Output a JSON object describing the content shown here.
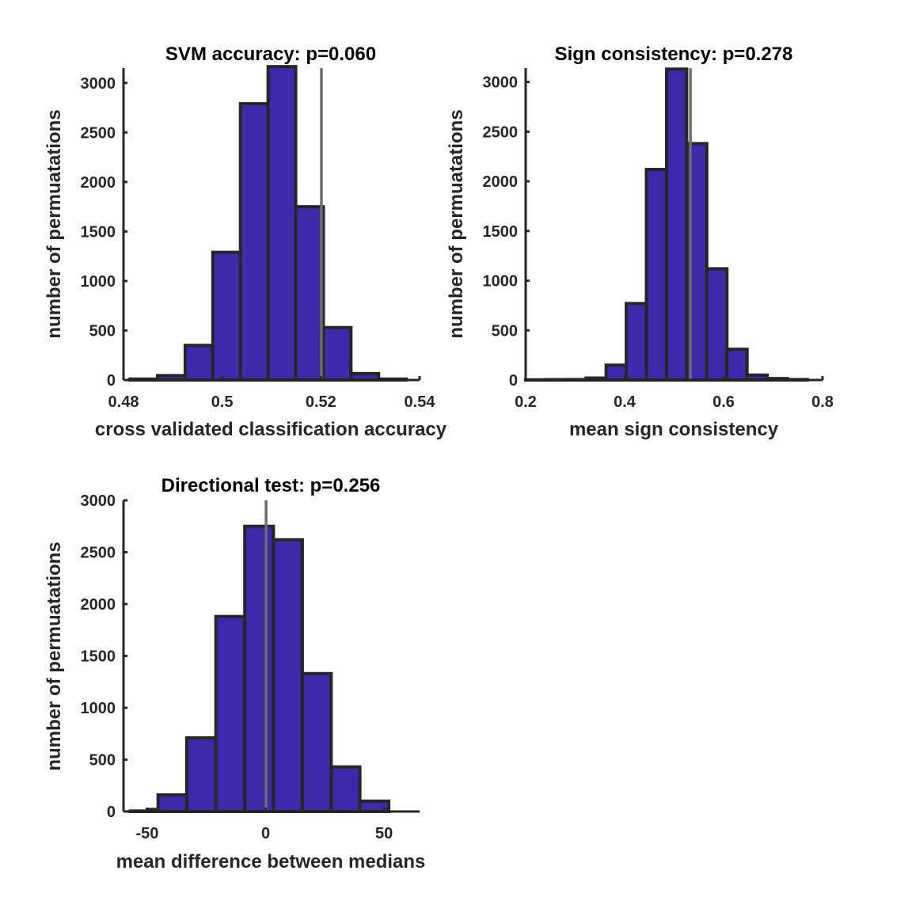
{
  "chart_data": [
    {
      "type": "bar",
      "title": "SVM accuracy: p=0.060",
      "xlabel": "cross validated classification accuracy",
      "ylabel": "number of permuatations",
      "xlim": [
        0.48,
        0.54
      ],
      "ylim": [
        0,
        3150
      ],
      "xticks": [
        0.48,
        0.5,
        0.52,
        0.54
      ],
      "xtick_labels": [
        "0.48",
        "0.5",
        "0.52",
        "0.54"
      ],
      "yticks": [
        0,
        500,
        1000,
        1500,
        2000,
        2500,
        3000
      ],
      "ytick_labels": [
        "0",
        "500",
        "1000",
        "1500",
        "2000",
        "2500",
        "3000"
      ],
      "bin_edges": [
        0.4813,
        0.4869,
        0.4925,
        0.4981,
        0.5037,
        0.5093,
        0.5149,
        0.5205,
        0.5261,
        0.5317,
        0.5373
      ],
      "counts": [
        10,
        45,
        350,
        1290,
        2790,
        3165,
        1750,
        530,
        65,
        10
      ],
      "observed_value": 0.5201,
      "bar_color": "#3d2aab",
      "grid": false
    },
    {
      "type": "bar",
      "title": "Sign consistency: p=0.278",
      "xlabel": "mean sign consistency",
      "ylabel": "number of permuatations",
      "xlim": [
        0.2,
        0.8
      ],
      "ylim": [
        0,
        3140
      ],
      "xticks": [
        0.2,
        0.4,
        0.6,
        0.8
      ],
      "xtick_labels": [
        "0.2",
        "0.4",
        "0.6",
        "0.8"
      ],
      "yticks": [
        0,
        500,
        1000,
        1500,
        2000,
        2500,
        3000
      ],
      "ytick_labels": [
        "0",
        "500",
        "1000",
        "1500",
        "2000",
        "2500",
        "3000"
      ],
      "bin_edges": [
        0.2,
        0.2405,
        0.2812,
        0.3219,
        0.3626,
        0.4033,
        0.444,
        0.4847,
        0.5254,
        0.5661,
        0.6068,
        0.6475,
        0.6882,
        0.7289,
        0.7696
      ],
      "counts": [
        2,
        4,
        5,
        20,
        150,
        770,
        2120,
        3130,
        2380,
        1120,
        310,
        50,
        15,
        5
      ],
      "observed_value": 0.533,
      "bar_color": "#3d2aab",
      "grid": false
    },
    {
      "type": "bar",
      "title": "Directional test: p=0.256",
      "xlabel": "mean difference between medians",
      "ylabel": "number of permuatations",
      "xlim": [
        -60,
        65
      ],
      "ylim": [
        0,
        3000
      ],
      "xticks": [
        -50,
        0,
        50
      ],
      "xtick_labels": [
        "-50",
        "0",
        "50"
      ],
      "yticks": [
        0,
        500,
        1000,
        1500,
        2000,
        2500,
        3000
      ],
      "ytick_labels": [
        "0",
        "500",
        "1000",
        "1500",
        "2000",
        "2500",
        "3000"
      ],
      "bin_edges": [
        -57.2,
        -50,
        -45.4,
        -33.3,
        -21,
        -8.8,
        3.3,
        15.5,
        27.7,
        39.8,
        52
      ],
      "counts": [
        5,
        20,
        160,
        710,
        1880,
        2750,
        2620,
        1330,
        430,
        100
      ],
      "observed_value": 0.2,
      "bar_color": "#3d2aab",
      "grid": false
    }
  ]
}
